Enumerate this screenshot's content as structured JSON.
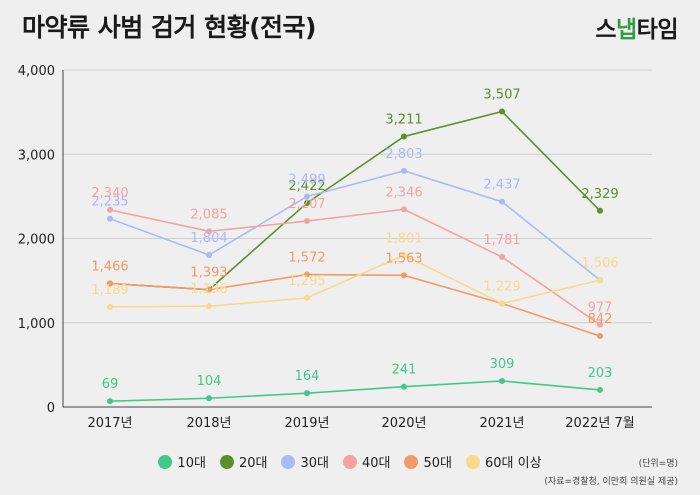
{
  "title": "마약류 사범 검거 현황(전국)",
  "logo": {
    "part1": "스",
    "part2": "냅",
    "part3": "타임"
  },
  "unit": "(단위=명)",
  "source": "(자료=경찰청, 이만희 의원실 제공)",
  "chart_data": {
    "type": "line",
    "categories": [
      "2017년",
      "2018년",
      "2019년",
      "2020년",
      "2021년",
      "2022년 7월"
    ],
    "ylim": [
      0,
      4000
    ],
    "yticks": [
      0,
      1000,
      2000,
      3000,
      4000
    ],
    "ytick_labels": [
      "0",
      "1,000",
      "2,000",
      "3,000",
      "4,000"
    ],
    "grid": true,
    "legend": "bottom",
    "series": [
      {
        "name": "10대",
        "color": "#40c98a",
        "values": [
          69,
          104,
          164,
          241,
          309,
          203
        ],
        "labels": [
          "69",
          "104",
          "164",
          "241",
          "309",
          "203"
        ]
      },
      {
        "name": "20대",
        "color": "#5b8f2a",
        "values": [
          1466,
          1393,
          2422,
          3211,
          3507,
          2329
        ],
        "labels": [
          "",
          "",
          "2,422",
          "3,211",
          "3,507",
          "2,329"
        ]
      },
      {
        "name": "30대",
        "color": "#aab9f7",
        "values": [
          2235,
          1804,
          2499,
          2803,
          2437,
          1506
        ],
        "labels": [
          "2,235",
          "1,804",
          "2,499",
          "2,803",
          "2,437",
          ""
        ]
      },
      {
        "name": "40대",
        "color": "#f5a3a0",
        "values": [
          2340,
          2085,
          2207,
          2346,
          1781,
          977
        ],
        "labels": [
          "2,340",
          "2,085",
          "2,207",
          "2,346",
          "1,781",
          "977"
        ]
      },
      {
        "name": "50대",
        "color": "#f29b66",
        "values": [
          1466,
          1393,
          1572,
          1563,
          1229,
          842
        ],
        "labels": [
          "1,466",
          "1,393",
          "1,572",
          "1,563",
          "",
          "842"
        ]
      },
      {
        "name": "60대 이상",
        "color": "#fbd98a",
        "values": [
          1189,
          1196,
          1295,
          1801,
          1229,
          1506
        ],
        "labels": [
          "1,189",
          "1,196",
          "1,295",
          "1,801",
          "1,229",
          "1,506"
        ]
      }
    ]
  }
}
